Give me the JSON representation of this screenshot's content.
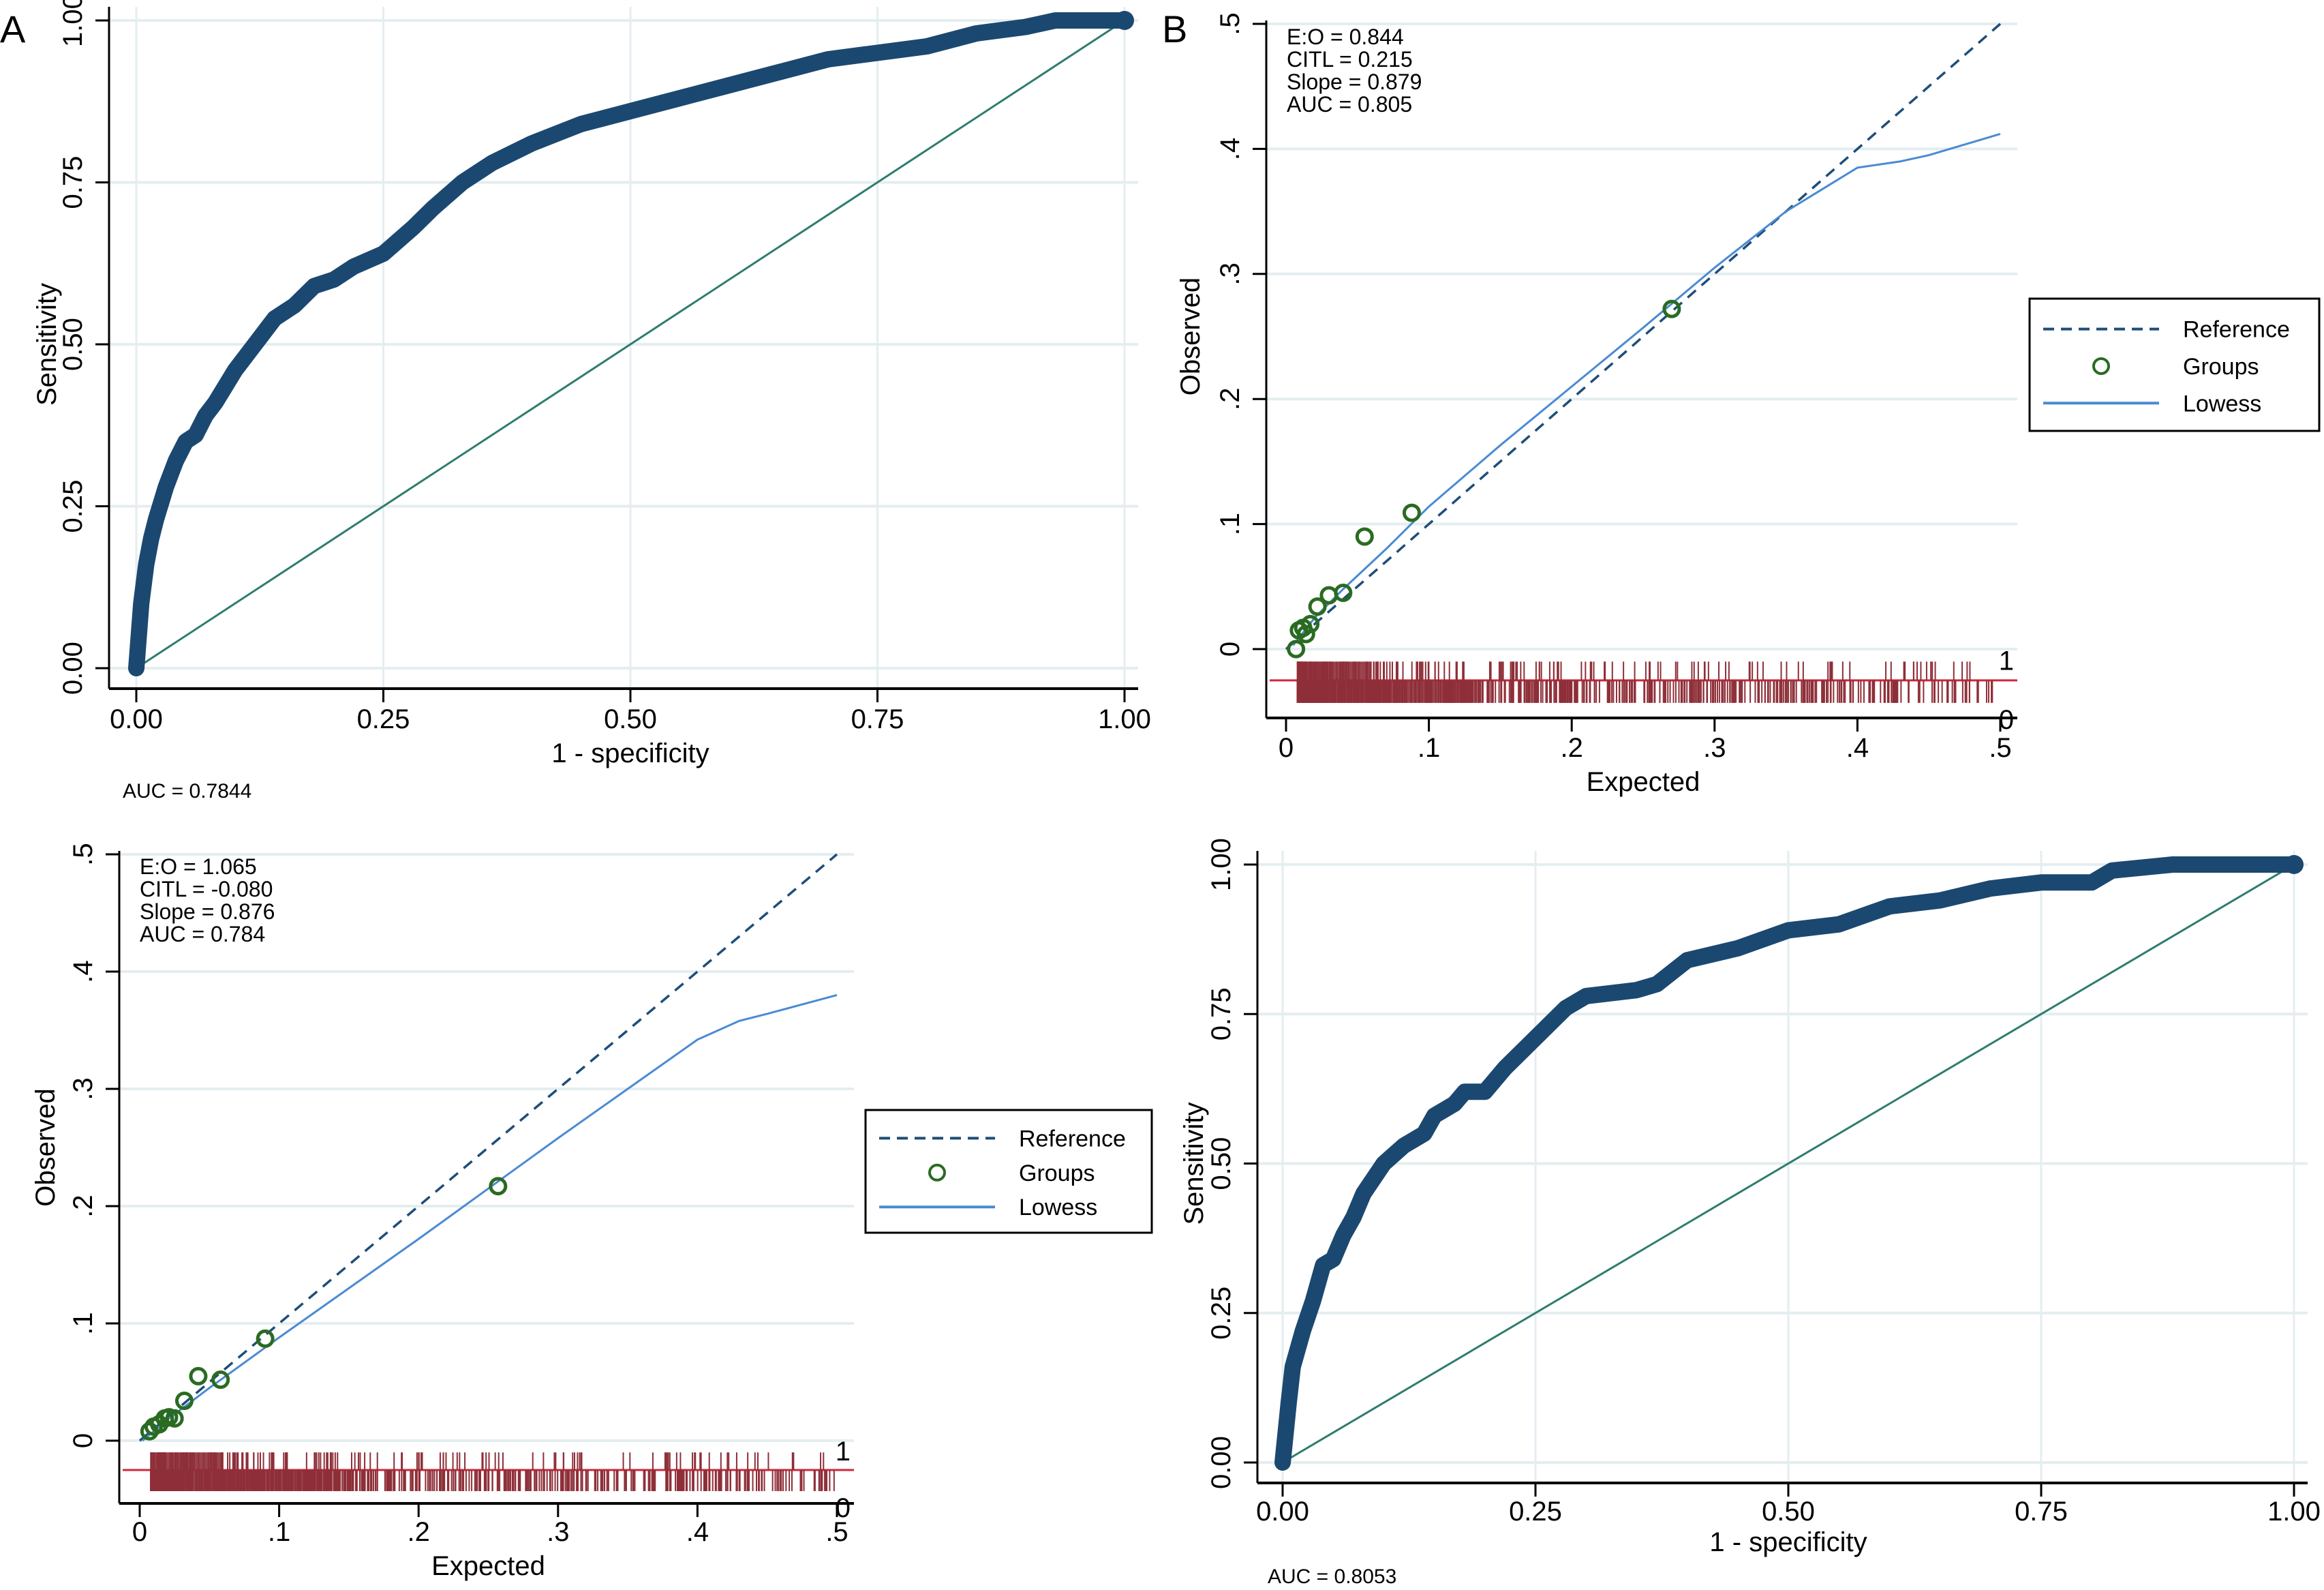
{
  "figure": {
    "panel_labels": [
      "A",
      "B"
    ]
  },
  "colors": {
    "roc_curve": "#1b4870",
    "diagonal": "#2e7d6e",
    "grid": "#e4eef0",
    "reference": "#1f4e79",
    "groups": "#2a6b22",
    "lowess": "#4a8ad4",
    "spike": "#8e2f38",
    "spike_axis": "#d0283c"
  },
  "chart_data": [
    {
      "id": "roc_top_left",
      "type": "line",
      "panel_label": "A",
      "xlabel": "1 - specificity",
      "ylabel": "Sensitivity",
      "xlim": [
        0,
        1
      ],
      "ylim": [
        0,
        1
      ],
      "xticks": [
        "0.00",
        "0.25",
        "0.50",
        "0.75",
        "1.00"
      ],
      "yticks": [
        "0.00",
        "0.25",
        "0.50",
        "0.75",
        "1.00"
      ],
      "grid": true,
      "note": "AUC = 0.7844",
      "series": [
        {
          "name": "ROC",
          "x": [
            0,
            0.002,
            0.005,
            0.01,
            0.015,
            0.02,
            0.03,
            0.04,
            0.05,
            0.06,
            0.07,
            0.08,
            0.1,
            0.12,
            0.14,
            0.16,
            0.18,
            0.2,
            0.22,
            0.25,
            0.28,
            0.3,
            0.33,
            0.36,
            0.4,
            0.45,
            0.5,
            0.55,
            0.6,
            0.65,
            0.7,
            0.75,
            0.8,
            0.85,
            0.9,
            0.93,
            0.96,
            1.0
          ],
          "y": [
            0,
            0.04,
            0.1,
            0.16,
            0.2,
            0.23,
            0.28,
            0.32,
            0.35,
            0.36,
            0.39,
            0.41,
            0.46,
            0.5,
            0.54,
            0.56,
            0.59,
            0.6,
            0.62,
            0.64,
            0.68,
            0.71,
            0.75,
            0.78,
            0.81,
            0.84,
            0.86,
            0.88,
            0.9,
            0.92,
            0.94,
            0.95,
            0.96,
            0.98,
            0.99,
            1.0,
            1.0,
            1.0
          ]
        },
        {
          "name": "Reference diagonal",
          "x": [
            0,
            1
          ],
          "y": [
            0,
            1
          ]
        }
      ]
    },
    {
      "id": "calibration_top_right",
      "type": "scatter",
      "panel_label": "B",
      "xlabel": "Expected",
      "ylabel": "Observed",
      "xlim": [
        0,
        0.5
      ],
      "ylim": [
        0,
        0.5
      ],
      "xticks": [
        "0",
        ".1",
        ".2",
        ".3",
        ".4",
        ".5"
      ],
      "yticks": [
        "0",
        ".1",
        ".2",
        ".3",
        ".4",
        ".5"
      ],
      "grid": true,
      "stats": [
        "E:O = 0.844",
        "CITL = 0.215",
        "Slope = 0.879",
        "AUC = 0.805"
      ],
      "legend": {
        "position": "right",
        "entries": [
          "Reference",
          "Groups",
          "Lowess"
        ]
      },
      "spike_labels": [
        "1",
        "0"
      ],
      "groups": {
        "x": [
          0.007,
          0.009,
          0.012,
          0.014,
          0.017,
          0.022,
          0.03,
          0.04,
          0.055,
          0.088,
          0.27
        ],
        "y": [
          0.0,
          0.015,
          0.017,
          0.012,
          0.02,
          0.034,
          0.043,
          0.045,
          0.09,
          0.109,
          0.272
        ]
      },
      "lowess": {
        "x": [
          0.005,
          0.02,
          0.04,
          0.07,
          0.1,
          0.15,
          0.2,
          0.25,
          0.3,
          0.35,
          0.4,
          0.43,
          0.45,
          0.5
        ],
        "y": [
          0.003,
          0.025,
          0.048,
          0.08,
          0.114,
          0.163,
          0.21,
          0.257,
          0.305,
          0.35,
          0.385,
          0.39,
          0.395,
          0.412
        ]
      },
      "reference": {
        "x": [
          0,
          0.5
        ],
        "y": [
          0,
          0.5
        ]
      }
    },
    {
      "id": "calibration_bottom_left",
      "type": "scatter",
      "xlabel": "Expected",
      "ylabel": "Observed",
      "xlim": [
        0,
        0.5
      ],
      "ylim": [
        0,
        0.5
      ],
      "xticks": [
        "0",
        ".1",
        ".2",
        ".3",
        ".4",
        ".5"
      ],
      "yticks": [
        "0",
        ".1",
        ".2",
        ".3",
        ".4",
        ".5"
      ],
      "grid": true,
      "stats": [
        "E:O = 1.065",
        "CITL = -0.080",
        "Slope = 0.876",
        "AUC = 0.784"
      ],
      "legend": {
        "position": "right",
        "entries": [
          "Reference",
          "Groups",
          "Lowess"
        ]
      },
      "spike_labels": [
        "1",
        "0"
      ],
      "groups": {
        "x": [
          0.007,
          0.01,
          0.014,
          0.018,
          0.021,
          0.025,
          0.032,
          0.042,
          0.058,
          0.09,
          0.257
        ],
        "y": [
          0.008,
          0.012,
          0.014,
          0.019,
          0.02,
          0.019,
          0.034,
          0.055,
          0.052,
          0.087,
          0.217
        ]
      },
      "lowess": {
        "x": [
          0.002,
          0.02,
          0.05,
          0.1,
          0.15,
          0.2,
          0.25,
          0.3,
          0.35,
          0.4,
          0.43,
          0.45,
          0.5
        ],
        "y": [
          0.0,
          0.018,
          0.045,
          0.088,
          0.13,
          0.172,
          0.215,
          0.258,
          0.3,
          0.342,
          0.358,
          0.364,
          0.38
        ]
      },
      "reference": {
        "x": [
          0,
          0.5
        ],
        "y": [
          0,
          0.5
        ]
      }
    },
    {
      "id": "roc_bottom_right",
      "type": "line",
      "xlabel": "1 - specificity",
      "ylabel": "Sensitivity",
      "xlim": [
        0,
        1
      ],
      "ylim": [
        0,
        1
      ],
      "xticks": [
        "0.00",
        "0.25",
        "0.50",
        "0.75",
        "1.00"
      ],
      "yticks": [
        "0.00",
        "0.25",
        "0.50",
        "0.75",
        "1.00"
      ],
      "grid": true,
      "note": "AUC = 0.8053",
      "series": [
        {
          "name": "ROC",
          "x": [
            0,
            0.003,
            0.006,
            0.01,
            0.015,
            0.02,
            0.03,
            0.04,
            0.05,
            0.06,
            0.07,
            0.08,
            0.1,
            0.12,
            0.14,
            0.15,
            0.17,
            0.18,
            0.2,
            0.22,
            0.25,
            0.28,
            0.3,
            0.35,
            0.37,
            0.4,
            0.45,
            0.5,
            0.55,
            0.6,
            0.65,
            0.7,
            0.75,
            0.8,
            0.82,
            0.88,
            1.0
          ],
          "y": [
            0,
            0.05,
            0.1,
            0.16,
            0.19,
            0.22,
            0.27,
            0.33,
            0.34,
            0.38,
            0.41,
            0.45,
            0.5,
            0.53,
            0.55,
            0.58,
            0.6,
            0.62,
            0.62,
            0.66,
            0.71,
            0.76,
            0.78,
            0.79,
            0.8,
            0.84,
            0.86,
            0.89,
            0.9,
            0.93,
            0.94,
            0.96,
            0.97,
            0.97,
            0.99,
            1.0,
            1.0
          ]
        },
        {
          "name": "Reference diagonal",
          "x": [
            0,
            1
          ],
          "y": [
            0,
            1
          ]
        }
      ]
    }
  ]
}
